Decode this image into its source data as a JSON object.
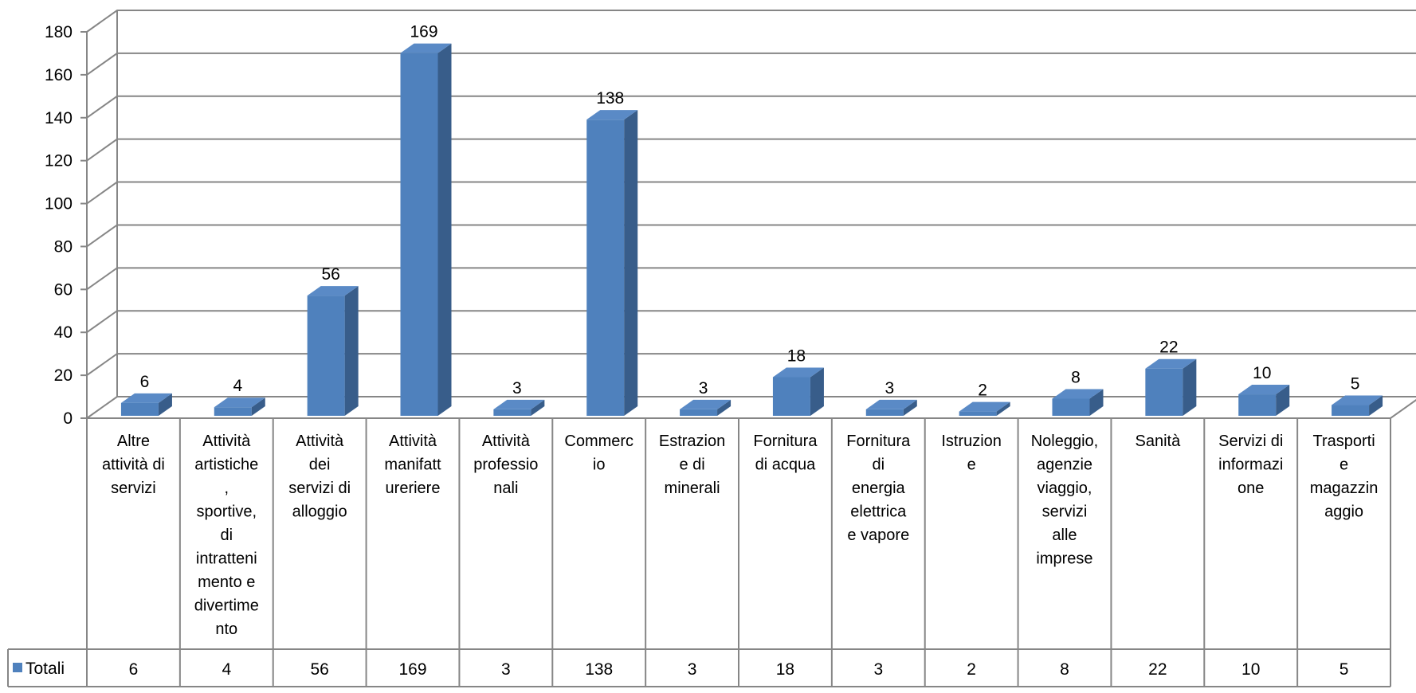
{
  "chart_data": {
    "type": "bar",
    "style": "3d-column",
    "categories": [
      "Altre attività di servizi",
      "Attività artistiche, sportive, di intrattenimento e divertimento",
      "Attività dei servizi di alloggio",
      "Attività manifatturiere",
      "Attività professionali",
      "Commercio",
      "Estrazione di minerali",
      "Fornitura di acqua",
      "Fornitura di energia elettrica e vapore",
      "Istruzione",
      "Noleggio, agenzie viaggio, servizi alle imprese",
      "Sanità",
      "Servizi di informazione",
      "Trasporti e magazzinaggio"
    ],
    "category_lines": [
      [
        "Altre",
        "attività di",
        "servizi"
      ],
      [
        "Attività",
        "artistiche",
        ",",
        "sportive,",
        "di",
        "intratteni",
        "mento e",
        "divertime",
        "nto"
      ],
      [
        "Attività",
        "dei",
        "servizi di",
        "alloggio"
      ],
      [
        "Attività",
        "manifatt",
        "ureriere"
      ],
      [
        "Attività",
        "professio",
        "nali"
      ],
      [
        "Commerc",
        "io"
      ],
      [
        "Estrazion",
        "e di",
        "minerali"
      ],
      [
        "Fornitura",
        "di acqua"
      ],
      [
        "Fornitura",
        "di",
        "energia",
        "elettrica",
        "e vapore"
      ],
      [
        "Istruzion",
        "e"
      ],
      [
        "Noleggio,",
        "agenzie",
        "viaggio,",
        "servizi",
        "alle",
        "imprese"
      ],
      [
        "Sanità"
      ],
      [
        "Servizi di",
        "informazi",
        "one"
      ],
      [
        "Trasporti",
        "e",
        "magazzin",
        "aggio"
      ]
    ],
    "series": [
      {
        "name": "Totali",
        "values": [
          6,
          4,
          56,
          169,
          3,
          138,
          3,
          18,
          3,
          2,
          8,
          22,
          10,
          5
        ],
        "color": "#4F81BD"
      }
    ],
    "ylim": [
      0,
      180
    ],
    "yticks": [
      0,
      20,
      40,
      60,
      80,
      100,
      120,
      140,
      160,
      180
    ],
    "ytick_labels": [
      "0",
      "20",
      "40",
      "60",
      "80",
      "100",
      "120",
      "140",
      "160",
      "180"
    ],
    "data_labels": [
      "6",
      "4",
      "56",
      "169",
      "3",
      "138",
      "3",
      "18",
      "3",
      "2",
      "8",
      "22",
      "10",
      "5"
    ],
    "grid": true,
    "legend": "data-table",
    "title": "",
    "xlabel": "",
    "ylabel": ""
  }
}
